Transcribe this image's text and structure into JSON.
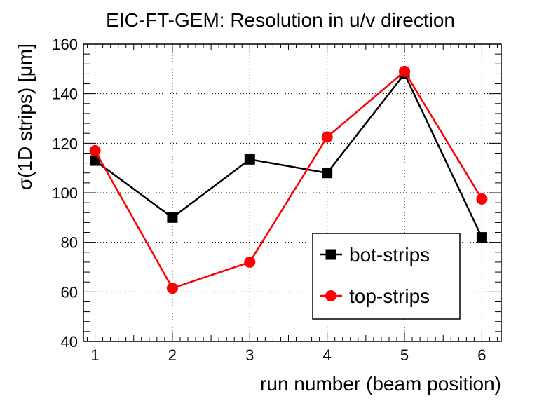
{
  "chart_data": {
    "type": "line",
    "title": "EIC-FT-GEM: Resolution in u/v direction",
    "xlabel": "run number (beam position)",
    "ylabel": "σ(1D strips) [μm]",
    "xlim": [
      0.85,
      6.25
    ],
    "ylim": [
      40,
      160
    ],
    "x_ticks": [
      1,
      2,
      3,
      4,
      5,
      6
    ],
    "y_ticks": [
      40,
      60,
      80,
      100,
      120,
      140,
      160
    ],
    "grid": true,
    "legend_position": "bottom-right",
    "series": [
      {
        "name": "bot-strips",
        "color": "#000000",
        "marker": "square",
        "x": [
          1,
          2,
          3,
          4,
          5,
          6
        ],
        "values": [
          113,
          90,
          113.5,
          108,
          148,
          82
        ]
      },
      {
        "name": "top-strips",
        "color": "#ff0000",
        "marker": "circle",
        "x": [
          1,
          2,
          3,
          4,
          5,
          6
        ],
        "values": [
          117,
          61.5,
          72,
          122.5,
          149,
          97.5
        ]
      }
    ]
  }
}
